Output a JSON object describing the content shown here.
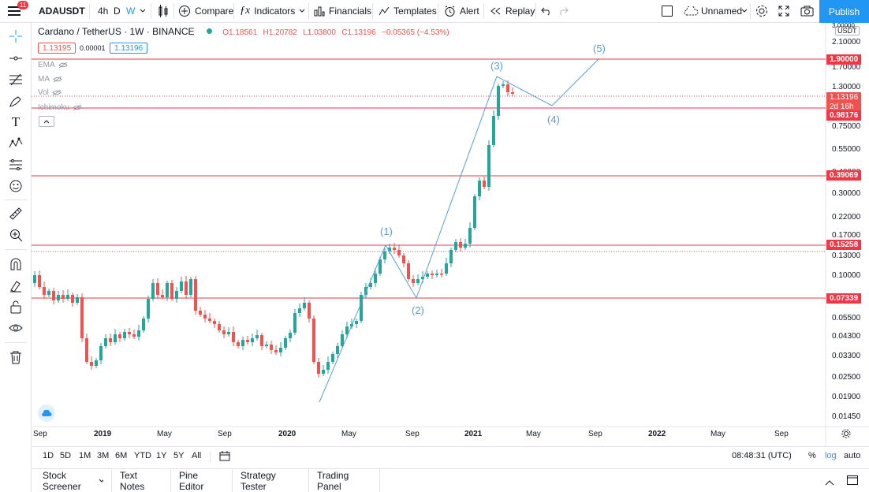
{
  "header": {
    "symbol": "ADAUSDT",
    "intervals": [
      "4h",
      "D",
      "W"
    ],
    "compare": "Compare",
    "indicators": "Indicators",
    "financials": "Financials",
    "templates": "Templates",
    "alert": "Alert",
    "replay": "Replay",
    "layout_name": "Unnamed",
    "publish": "Publish",
    "notif_count": "11"
  },
  "legend": {
    "title": "Cardano / TetherUS · 1W · BINANCE",
    "o": "O1.18561",
    "h": "H1.20782",
    "l": "L1.03800",
    "c": "C1.13196",
    "chg": "−0.05365 (−4.53%)",
    "bid": "1.13195",
    "spread": "0.00001",
    "ask": "1.13196",
    "indicators": [
      "EMA",
      "MA",
      "Vol",
      "Ichimoku"
    ]
  },
  "axis": {
    "currency": "USDT",
    "ticks_y": [
      "3.00000",
      "2.10000",
      "1.70000",
      "1.30000",
      "0.75000",
      "0.55000",
      "0.40000",
      "0.30000",
      "0.22000",
      "0.17000",
      "0.13000",
      "0.10000",
      "0.05500",
      "0.04300",
      "0.03300",
      "0.02500",
      "0.01900",
      "0.01450"
    ],
    "ticks_x": [
      "Sep",
      "2019",
      "May",
      "Sep",
      "2020",
      "May",
      "Sep",
      "2021",
      "May",
      "Sep",
      "2022",
      "May",
      "Sep"
    ],
    "price_labels": [
      "1.90000",
      "1.13196",
      "2d 16h",
      "0.98176",
      "0.39069",
      "0.15258",
      "0.07339"
    ]
  },
  "waves": [
    "(1)",
    "(2)",
    "(3)",
    "(4)",
    "(5)"
  ],
  "range": {
    "buttons": [
      "1D",
      "5D",
      "1M",
      "3M",
      "6M",
      "YTD",
      "1Y",
      "5Y",
      "All"
    ],
    "time": "08:48:31 (UTC)",
    "pct": "%",
    "log": "log",
    "auto": "auto"
  },
  "tabs": [
    "Stock Screener",
    "Text Notes",
    "Pine Editor",
    "Strategy Tester",
    "Trading Panel"
  ],
  "colors": {
    "up": "#26a69a",
    "down": "#ef5350",
    "line": "#f23645",
    "accent": "#2196f3",
    "wave": "#5b9bd5"
  }
}
